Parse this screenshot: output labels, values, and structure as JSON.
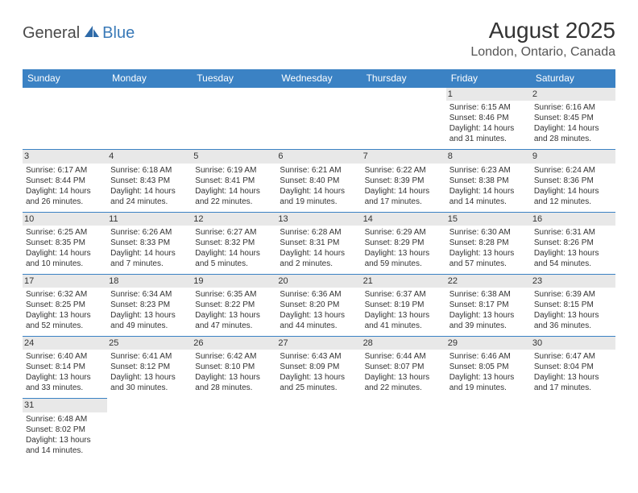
{
  "logo": {
    "part1": "General",
    "part2": "Blue"
  },
  "title": "August 2025",
  "location": "London, Ontario, Canada",
  "colors": {
    "header_bg": "#3b82c4",
    "header_text": "#ffffff",
    "daynum_bg": "#e8e8e8",
    "border": "#3b82c4",
    "text": "#333333",
    "logo_gray": "#4a4a4a",
    "logo_blue": "#3a7ab8"
  },
  "day_headers": [
    "Sunday",
    "Monday",
    "Tuesday",
    "Wednesday",
    "Thursday",
    "Friday",
    "Saturday"
  ],
  "weeks": [
    [
      null,
      null,
      null,
      null,
      null,
      {
        "n": "1",
        "sr": "Sunrise: 6:15 AM",
        "ss": "Sunset: 8:46 PM",
        "d1": "Daylight: 14 hours",
        "d2": "and 31 minutes."
      },
      {
        "n": "2",
        "sr": "Sunrise: 6:16 AM",
        "ss": "Sunset: 8:45 PM",
        "d1": "Daylight: 14 hours",
        "d2": "and 28 minutes."
      }
    ],
    [
      {
        "n": "3",
        "sr": "Sunrise: 6:17 AM",
        "ss": "Sunset: 8:44 PM",
        "d1": "Daylight: 14 hours",
        "d2": "and 26 minutes."
      },
      {
        "n": "4",
        "sr": "Sunrise: 6:18 AM",
        "ss": "Sunset: 8:43 PM",
        "d1": "Daylight: 14 hours",
        "d2": "and 24 minutes."
      },
      {
        "n": "5",
        "sr": "Sunrise: 6:19 AM",
        "ss": "Sunset: 8:41 PM",
        "d1": "Daylight: 14 hours",
        "d2": "and 22 minutes."
      },
      {
        "n": "6",
        "sr": "Sunrise: 6:21 AM",
        "ss": "Sunset: 8:40 PM",
        "d1": "Daylight: 14 hours",
        "d2": "and 19 minutes."
      },
      {
        "n": "7",
        "sr": "Sunrise: 6:22 AM",
        "ss": "Sunset: 8:39 PM",
        "d1": "Daylight: 14 hours",
        "d2": "and 17 minutes."
      },
      {
        "n": "8",
        "sr": "Sunrise: 6:23 AM",
        "ss": "Sunset: 8:38 PM",
        "d1": "Daylight: 14 hours",
        "d2": "and 14 minutes."
      },
      {
        "n": "9",
        "sr": "Sunrise: 6:24 AM",
        "ss": "Sunset: 8:36 PM",
        "d1": "Daylight: 14 hours",
        "d2": "and 12 minutes."
      }
    ],
    [
      {
        "n": "10",
        "sr": "Sunrise: 6:25 AM",
        "ss": "Sunset: 8:35 PM",
        "d1": "Daylight: 14 hours",
        "d2": "and 10 minutes."
      },
      {
        "n": "11",
        "sr": "Sunrise: 6:26 AM",
        "ss": "Sunset: 8:33 PM",
        "d1": "Daylight: 14 hours",
        "d2": "and 7 minutes."
      },
      {
        "n": "12",
        "sr": "Sunrise: 6:27 AM",
        "ss": "Sunset: 8:32 PM",
        "d1": "Daylight: 14 hours",
        "d2": "and 5 minutes."
      },
      {
        "n": "13",
        "sr": "Sunrise: 6:28 AM",
        "ss": "Sunset: 8:31 PM",
        "d1": "Daylight: 14 hours",
        "d2": "and 2 minutes."
      },
      {
        "n": "14",
        "sr": "Sunrise: 6:29 AM",
        "ss": "Sunset: 8:29 PM",
        "d1": "Daylight: 13 hours",
        "d2": "and 59 minutes."
      },
      {
        "n": "15",
        "sr": "Sunrise: 6:30 AM",
        "ss": "Sunset: 8:28 PM",
        "d1": "Daylight: 13 hours",
        "d2": "and 57 minutes."
      },
      {
        "n": "16",
        "sr": "Sunrise: 6:31 AM",
        "ss": "Sunset: 8:26 PM",
        "d1": "Daylight: 13 hours",
        "d2": "and 54 minutes."
      }
    ],
    [
      {
        "n": "17",
        "sr": "Sunrise: 6:32 AM",
        "ss": "Sunset: 8:25 PM",
        "d1": "Daylight: 13 hours",
        "d2": "and 52 minutes."
      },
      {
        "n": "18",
        "sr": "Sunrise: 6:34 AM",
        "ss": "Sunset: 8:23 PM",
        "d1": "Daylight: 13 hours",
        "d2": "and 49 minutes."
      },
      {
        "n": "19",
        "sr": "Sunrise: 6:35 AM",
        "ss": "Sunset: 8:22 PM",
        "d1": "Daylight: 13 hours",
        "d2": "and 47 minutes."
      },
      {
        "n": "20",
        "sr": "Sunrise: 6:36 AM",
        "ss": "Sunset: 8:20 PM",
        "d1": "Daylight: 13 hours",
        "d2": "and 44 minutes."
      },
      {
        "n": "21",
        "sr": "Sunrise: 6:37 AM",
        "ss": "Sunset: 8:19 PM",
        "d1": "Daylight: 13 hours",
        "d2": "and 41 minutes."
      },
      {
        "n": "22",
        "sr": "Sunrise: 6:38 AM",
        "ss": "Sunset: 8:17 PM",
        "d1": "Daylight: 13 hours",
        "d2": "and 39 minutes."
      },
      {
        "n": "23",
        "sr": "Sunrise: 6:39 AM",
        "ss": "Sunset: 8:15 PM",
        "d1": "Daylight: 13 hours",
        "d2": "and 36 minutes."
      }
    ],
    [
      {
        "n": "24",
        "sr": "Sunrise: 6:40 AM",
        "ss": "Sunset: 8:14 PM",
        "d1": "Daylight: 13 hours",
        "d2": "and 33 minutes."
      },
      {
        "n": "25",
        "sr": "Sunrise: 6:41 AM",
        "ss": "Sunset: 8:12 PM",
        "d1": "Daylight: 13 hours",
        "d2": "and 30 minutes."
      },
      {
        "n": "26",
        "sr": "Sunrise: 6:42 AM",
        "ss": "Sunset: 8:10 PM",
        "d1": "Daylight: 13 hours",
        "d2": "and 28 minutes."
      },
      {
        "n": "27",
        "sr": "Sunrise: 6:43 AM",
        "ss": "Sunset: 8:09 PM",
        "d1": "Daylight: 13 hours",
        "d2": "and 25 minutes."
      },
      {
        "n": "28",
        "sr": "Sunrise: 6:44 AM",
        "ss": "Sunset: 8:07 PM",
        "d1": "Daylight: 13 hours",
        "d2": "and 22 minutes."
      },
      {
        "n": "29",
        "sr": "Sunrise: 6:46 AM",
        "ss": "Sunset: 8:05 PM",
        "d1": "Daylight: 13 hours",
        "d2": "and 19 minutes."
      },
      {
        "n": "30",
        "sr": "Sunrise: 6:47 AM",
        "ss": "Sunset: 8:04 PM",
        "d1": "Daylight: 13 hours",
        "d2": "and 17 minutes."
      }
    ],
    [
      {
        "n": "31",
        "sr": "Sunrise: 6:48 AM",
        "ss": "Sunset: 8:02 PM",
        "d1": "Daylight: 13 hours",
        "d2": "and 14 minutes."
      },
      null,
      null,
      null,
      null,
      null,
      null
    ]
  ]
}
